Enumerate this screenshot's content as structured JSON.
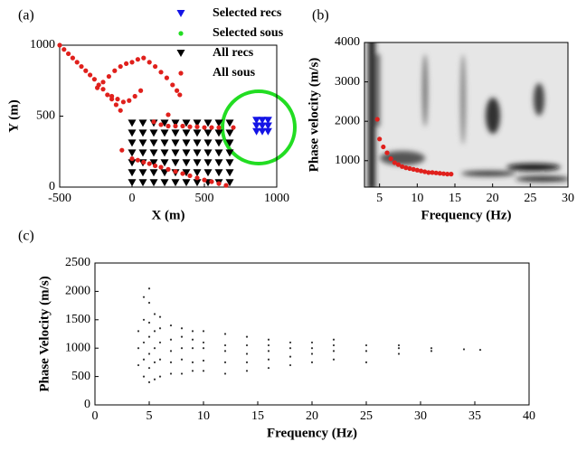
{
  "chart_data": [
    {
      "type": "scatter",
      "label": "(a)",
      "xlabel": "X (m)",
      "ylabel": "Y (m)",
      "xlim": [
        -500,
        1000
      ],
      "xticks": [
        -500,
        0,
        500,
        1000
      ],
      "ylim": [
        0,
        1000
      ],
      "yticks": [
        0,
        500,
        1000
      ],
      "legend": "upper right",
      "series": [
        {
          "name": "Selected recs",
          "color": "#1414e6",
          "marker": "triangle",
          "x": [
            860,
            900,
            940,
            860,
            900,
            940,
            860,
            900,
            940
          ],
          "y": [
            390,
            390,
            390,
            430,
            430,
            430,
            470,
            470,
            470
          ]
        },
        {
          "name": "Selected sous",
          "color": "#22dd22",
          "marker": "dot",
          "x": [],
          "y": []
        },
        {
          "name": "All recs",
          "color": "#000000",
          "marker": "triangle",
          "x": [
            0,
            75,
            150,
            225,
            300,
            375,
            450,
            525,
            600,
            675,
            0,
            75,
            150,
            225,
            300,
            375,
            450,
            525,
            600,
            675,
            0,
            75,
            150,
            225,
            300,
            375,
            450,
            525,
            600,
            675,
            0,
            75,
            150,
            225,
            300,
            375,
            450,
            525,
            600,
            675,
            0,
            75,
            150,
            225,
            300,
            375,
            450,
            525,
            600,
            675,
            0,
            75,
            150,
            225,
            300,
            375,
            450,
            525,
            600,
            675,
            0,
            75,
            150,
            225,
            300,
            375,
            450,
            525,
            600,
            675
          ],
          "y": [
            30,
            30,
            30,
            30,
            30,
            30,
            30,
            30,
            30,
            30,
            100,
            100,
            100,
            100,
            100,
            100,
            100,
            100,
            100,
            100,
            170,
            170,
            170,
            170,
            170,
            170,
            170,
            170,
            170,
            170,
            240,
            240,
            240,
            240,
            240,
            240,
            240,
            240,
            240,
            240,
            310,
            310,
            310,
            310,
            310,
            310,
            310,
            310,
            310,
            310,
            380,
            380,
            380,
            380,
            380,
            380,
            380,
            380,
            380,
            380,
            450,
            450,
            450,
            450,
            450,
            450,
            450,
            450,
            450,
            450
          ]
        },
        {
          "name": "All sous",
          "color": "#e0201c",
          "marker": "dot",
          "x": [
            -500,
            -470,
            -440,
            -410,
            -380,
            -350,
            -320,
            -290,
            -260,
            -230,
            -200,
            -170,
            -140,
            -110,
            -80,
            -240,
            -200,
            -160,
            -120,
            -80,
            -40,
            0,
            40,
            80,
            120,
            160,
            200,
            240,
            280,
            310,
            330,
            -140,
            -100,
            -60,
            -20,
            20,
            60,
            150,
            200,
            250,
            300,
            350,
            400,
            450,
            500,
            550,
            600,
            0,
            40,
            80,
            120,
            160,
            200,
            250,
            300,
            350,
            400,
            450,
            500,
            550,
            600,
            650,
            250,
            -70,
            700
          ],
          "y": [
            1000,
            970,
            940,
            910,
            880,
            850,
            820,
            790,
            760,
            720,
            690,
            650,
            620,
            580,
            540,
            700,
            740,
            780,
            820,
            850,
            870,
            880,
            900,
            910,
            880,
            850,
            810,
            770,
            720,
            680,
            650,
            640,
            620,
            600,
            610,
            640,
            680,
            460,
            440,
            430,
            430,
            430,
            425,
            425,
            420,
            420,
            420,
            200,
            190,
            175,
            165,
            150,
            140,
            125,
            110,
            95,
            80,
            65,
            50,
            38,
            25,
            12,
            510,
            260,
            420
          ]
        }
      ]
    },
    {
      "type": "scatter",
      "label": "(b)",
      "xlabel": "Frequency (Hz)",
      "ylabel": "Phase velocity (m/s)",
      "xlim": [
        3,
        30
      ],
      "xticks": [
        5,
        10,
        15,
        20,
        25,
        30
      ],
      "ylim": [
        330,
        4000
      ],
      "yticks": [
        1000,
        2000,
        3000,
        4000
      ],
      "series": [
        {
          "color": "#e0201c",
          "marker": "dot",
          "x": [
            4.7,
            5,
            5.5,
            6,
            6.5,
            7,
            7.5,
            8,
            8.5,
            9,
            9.5,
            10,
            10.5,
            11,
            11.5,
            12,
            12.5,
            13,
            13.5,
            14,
            14.5
          ],
          "y": [
            2050,
            1550,
            1350,
            1200,
            1050,
            950,
            900,
            850,
            820,
            800,
            780,
            760,
            740,
            720,
            700,
            700,
            690,
            680,
            670,
            660,
            660
          ]
        }
      ]
    },
    {
      "type": "scatter",
      "label": "(c)",
      "xlabel": "Frequency (Hz)",
      "ylabel": "Phase Velocity (m/s)",
      "xlim": [
        0,
        40
      ],
      "xticks": [
        0,
        5,
        10,
        15,
        20,
        25,
        30,
        35,
        40
      ],
      "ylim": [
        0,
        2500
      ],
      "yticks": [
        0,
        500,
        1000,
        1500,
        2000,
        2500
      ],
      "series": [
        {
          "color": "#333333",
          "marker": "point",
          "x": [
            4,
            4,
            4,
            4.5,
            4.5,
            4.5,
            4.5,
            4.5,
            5,
            5,
            5,
            5,
            5,
            5,
            5,
            5.5,
            5.5,
            5.5,
            5.5,
            5.5,
            6,
            6,
            6,
            6,
            6,
            7,
            7,
            7,
            7,
            7,
            8,
            8,
            8,
            8,
            8,
            9,
            9,
            9,
            9,
            9,
            10,
            10,
            10,
            10,
            10,
            12,
            12,
            12,
            12,
            12,
            14,
            14,
            14,
            14,
            14,
            16,
            16,
            16,
            16,
            16,
            18,
            18,
            18,
            18,
            20,
            20,
            20,
            20,
            22,
            22,
            22,
            22,
            25,
            25,
            25,
            28,
            28,
            28,
            31,
            31,
            34,
            35.5
          ],
          "y": [
            700,
            1000,
            1300,
            500,
            800,
            1100,
            1500,
            1900,
            400,
            650,
            900,
            1200,
            1450,
            1800,
            2050,
            450,
            750,
            1000,
            1300,
            1600,
            500,
            800,
            1100,
            1350,
            1550,
            550,
            750,
            950,
            1150,
            1400,
            550,
            800,
            1000,
            1200,
            1350,
            600,
            750,
            1000,
            1150,
            1300,
            600,
            780,
            1000,
            1100,
            1300,
            550,
            750,
            950,
            1050,
            1250,
            600,
            750,
            900,
            1050,
            1200,
            650,
            800,
            950,
            1050,
            1150,
            700,
            850,
            1000,
            1100,
            750,
            900,
            1000,
            1100,
            800,
            950,
            1050,
            1150,
            750,
            950,
            1050,
            900,
            1000,
            1050,
            950,
            1000,
            980,
            970
          ]
        }
      ]
    }
  ]
}
